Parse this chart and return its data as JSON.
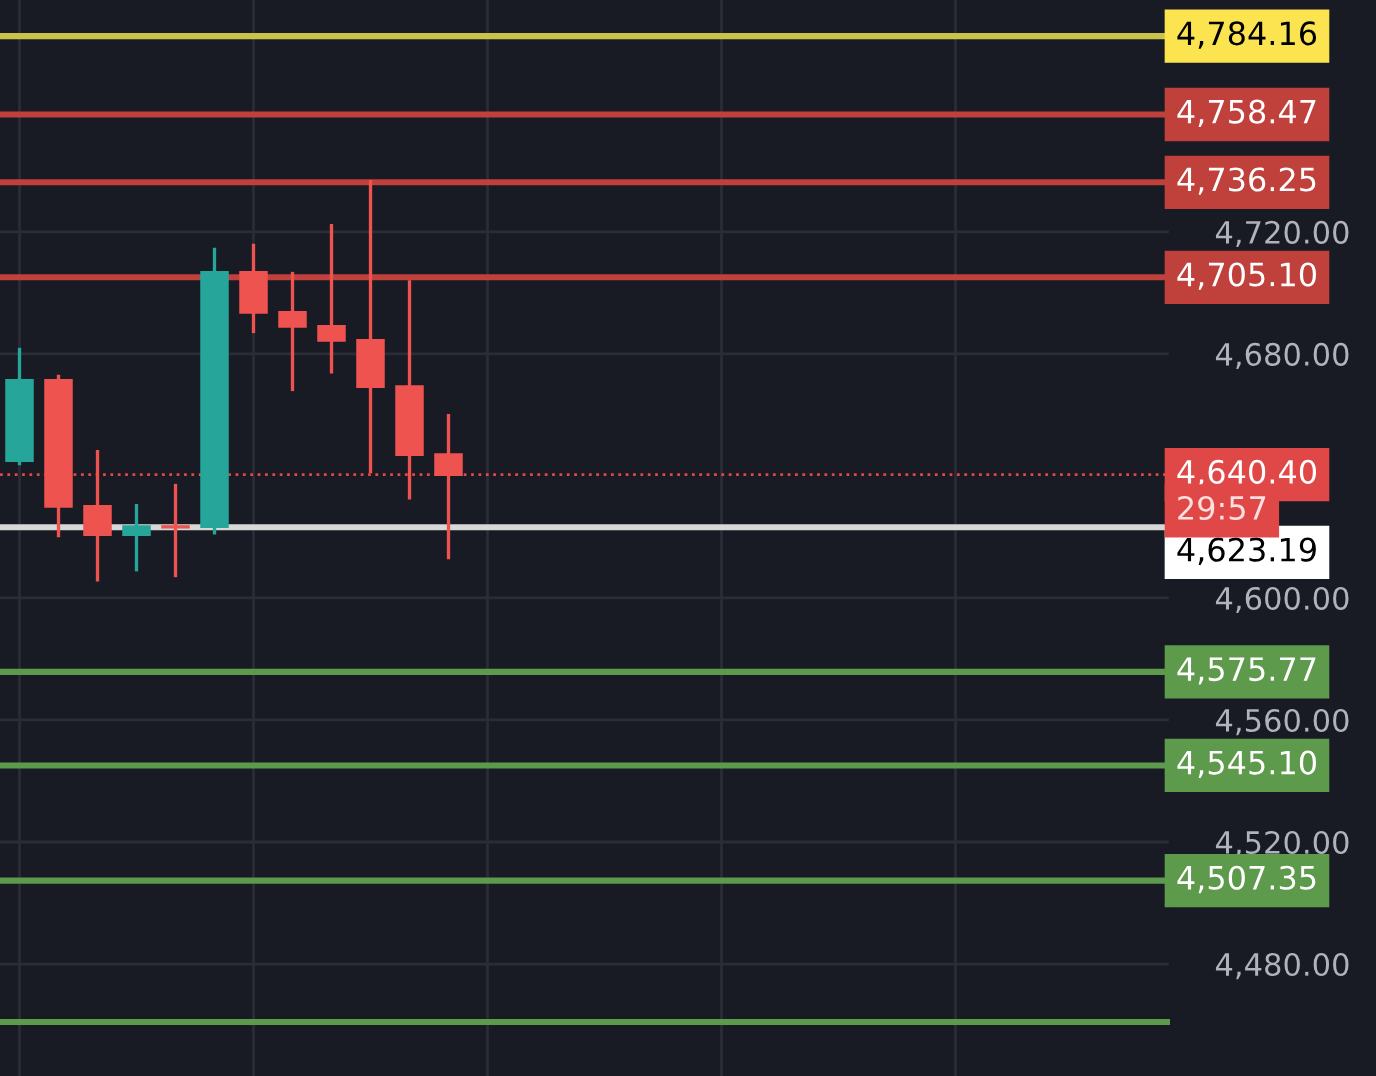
{
  "chart_data": {
    "type": "candlestick",
    "categories": [
      null,
      null,
      null,
      null,
      null,
      null,
      null,
      null,
      null,
      null,
      null,
      null,
      null,
      null,
      null,
      null,
      null,
      null,
      null,
      null,
      null,
      null,
      null,
      null,
      null,
      null,
      null,
      null,
      null,
      null
    ],
    "ohlc": [
      [
        4645.0,
        4682.0,
        4643.5,
        4671.3
      ],
      [
        4671.3,
        4673.2,
        4619.9,
        4630.0
      ],
      [
        4630.0,
        4648.5,
        4605.4,
        4620.8
      ],
      [
        4620.8,
        4630.8,
        4608.7,
        4623.4
      ],
      [
        4623.4,
        4637.4,
        4606.8,
        4623.2
      ],
      [
        4623.4,
        4714.8,
        4620.8,
        4706.7
      ],
      [
        4706.7,
        4716.1,
        4686.8,
        4693.6
      ],
      [
        4693.6,
        4706.9,
        4667.8,
        4689.0
      ],
      [
        4689.0,
        4722.6,
        4673.6,
        4684.4
      ],
      [
        4684.4,
        4737.0,
        4640.9,
        4669.3
      ],
      [
        4669.3,
        4704.1,
        4632.3,
        4647.0
      ],
      [
        4647.0,
        4660.3,
        4612.7,
        4640.4
      ],
      null,
      null,
      null,
      null,
      null,
      null,
      null,
      null,
      null,
      null,
      null,
      null,
      null,
      null,
      null,
      null,
      null,
      null
    ],
    "colors": [
      "#26a69a",
      "#ef5350",
      "#ef5350",
      "#26a69a",
      "#ef5350",
      "#26a69a",
      "#ef5350",
      "#ef5350",
      "#ef5350",
      "#ef5350",
      "#ef5350",
      "#ef5350",
      null,
      null,
      null,
      null,
      null,
      null,
      null,
      null,
      null,
      null,
      null,
      null,
      null,
      null,
      null,
      null,
      null,
      null
    ],
    "ylim": [
      4443.3,
      4796.0
    ],
    "yticks": [
      {
        "value": 4480,
        "label": "4,480.00"
      },
      {
        "value": 4520,
        "label": "4,520.00"
      },
      {
        "value": 4560,
        "label": "4,560.00"
      },
      {
        "value": 4600,
        "label": "4,600.00"
      },
      {
        "value": 4680,
        "label": "4,680.00"
      },
      {
        "value": 4720,
        "label": "4,720.00"
      }
    ],
    "grid": true,
    "ref_lines": [
      {
        "axis": "y",
        "value": 4784.16,
        "label": "4,784.16",
        "color": "#c9c34a",
        "line_style": "solid"
      },
      {
        "axis": "y",
        "value": 4758.47,
        "label": "4,758.47",
        "color": "#c0403c",
        "line_style": "solid"
      },
      {
        "axis": "y",
        "value": 4736.25,
        "label": "4,736.25",
        "color": "#c0403c",
        "line_style": "solid"
      },
      {
        "axis": "y",
        "value": 4705.1,
        "label": "4,705.10",
        "color": "#c0403c",
        "line_style": "solid"
      },
      {
        "axis": "y",
        "value": 4640.4,
        "label": "4,640.40",
        "color": "#e04848",
        "line_style": "dotted"
      },
      {
        "axis": "y",
        "value": 4623.19,
        "label": "4,623.19",
        "color": "#d8d8d8",
        "line_style": "solid"
      },
      {
        "axis": "y",
        "value": 4575.77,
        "label": "4,575.77",
        "color": "#5e9a4c",
        "line_style": "solid"
      },
      {
        "axis": "y",
        "value": 4545.1,
        "label": "4,545.10",
        "color": "#5e9a4c",
        "line_style": "solid"
      },
      {
        "axis": "y",
        "value": 4507.35,
        "label": "4,507.35",
        "color": "#5e9a4c",
        "line_style": "solid"
      },
      {
        "axis": "y",
        "value": 4461.0,
        "label": null,
        "color": "#5e9a4c",
        "line_style": "solid"
      }
    ],
    "annotations": [
      "29:57"
    ]
  }
}
